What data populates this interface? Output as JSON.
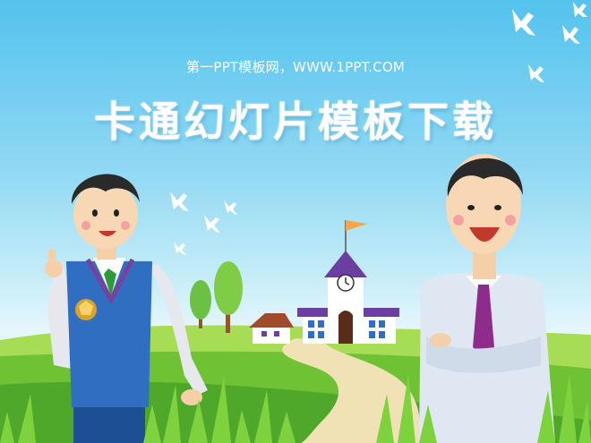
{
  "slide": {
    "subtitle": "第一PPT模板网，WWW.1PPT.COM",
    "title": "卡通幻灯片模板下载"
  },
  "colors": {
    "sky_top": "#53c3ee",
    "grass": "#6fc234",
    "vest": "#2f6ec0",
    "tie_left": "#2e9a3a",
    "tie_right": "#8e2c8c",
    "roof": "#6a3fa0"
  },
  "icons": [
    "bird-icon",
    "tree-icon",
    "school-building-icon",
    "flag-icon",
    "clock-icon",
    "badge-icon"
  ]
}
